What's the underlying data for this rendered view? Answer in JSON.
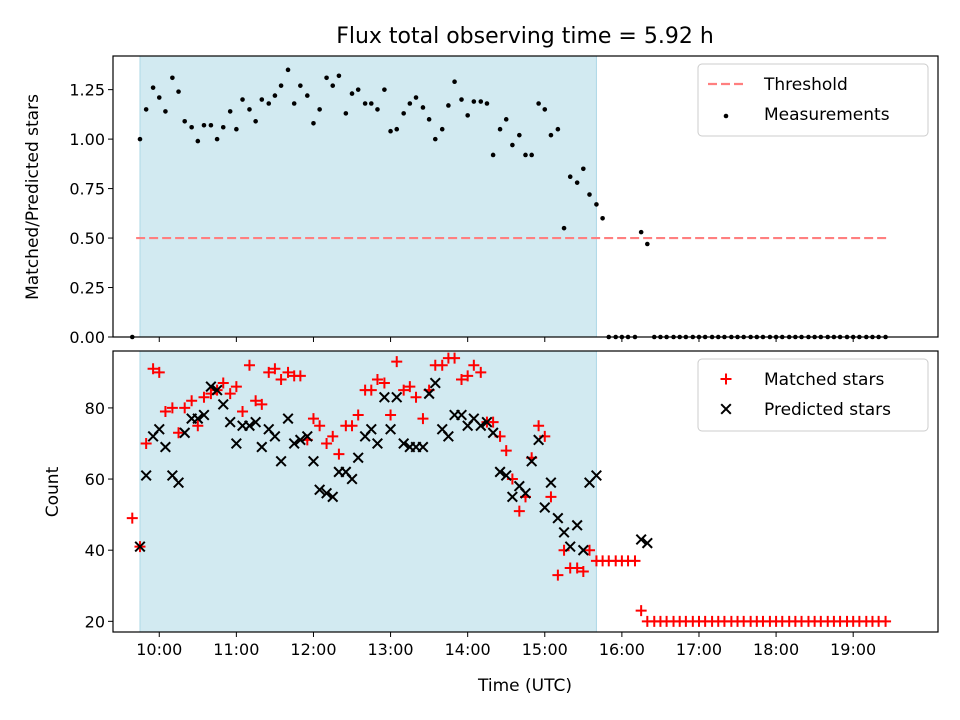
{
  "chart_data": [
    {
      "type": "scatter",
      "title": "Flux total observing time = 5.92 h",
      "xlabel": "",
      "ylabel": "Matched/Predicted stars",
      "xlim": [
        9.4,
        20.1
      ],
      "ylim": [
        0.0,
        1.42
      ],
      "yticks": [
        0.0,
        0.25,
        0.5,
        0.75,
        1.0,
        1.25
      ],
      "ytick_labels": [
        "0.00",
        "0.25",
        "0.50",
        "0.75",
        "1.00",
        "1.25"
      ],
      "xticks": [
        10,
        11,
        12,
        13,
        14,
        15,
        16,
        17,
        18,
        19
      ],
      "shaded_span": [
        9.75,
        15.67
      ],
      "shade_color": "#add8e6",
      "legend_position": "upper right",
      "threshold": {
        "name": "Threshold",
        "y": 0.5,
        "x_range": [
          9.7,
          19.45
        ],
        "color": "#ff7f7f"
      },
      "series": [
        {
          "name": "Measurements",
          "color": "#000000",
          "x": [
            9.65,
            9.75,
            9.83,
            9.92,
            10.0,
            10.08,
            10.17,
            10.25,
            10.33,
            10.42,
            10.5,
            10.58,
            10.67,
            10.75,
            10.83,
            10.92,
            11.0,
            11.08,
            11.17,
            11.25,
            11.33,
            11.42,
            11.5,
            11.58,
            11.67,
            11.75,
            11.83,
            11.92,
            12.0,
            12.08,
            12.17,
            12.25,
            12.33,
            12.42,
            12.5,
            12.58,
            12.67,
            12.75,
            12.83,
            12.92,
            13.0,
            13.08,
            13.17,
            13.25,
            13.33,
            13.42,
            13.5,
            13.58,
            13.67,
            13.75,
            13.83,
            13.92,
            14.0,
            14.08,
            14.17,
            14.25,
            14.33,
            14.42,
            14.5,
            14.58,
            14.67,
            14.75,
            14.83,
            14.92,
            15.0,
            15.08,
            15.17,
            15.25,
            15.33,
            15.42,
            15.5,
            15.58,
            15.67,
            15.75,
            15.83,
            15.92,
            16.0,
            16.08,
            16.17,
            16.25,
            16.33,
            16.42,
            16.5,
            16.58,
            16.67,
            16.75,
            16.83,
            16.92,
            17.0,
            17.08,
            17.17,
            17.25,
            17.33,
            17.42,
            17.5,
            17.58,
            17.67,
            17.75,
            17.83,
            17.92,
            18.0,
            18.08,
            18.17,
            18.25,
            18.33,
            18.42,
            18.5,
            18.58,
            18.67,
            18.75,
            18.83,
            18.92,
            19.0,
            19.08,
            19.17,
            19.25,
            19.33,
            19.42
          ],
          "y": [
            0.0,
            1.0,
            1.15,
            1.26,
            1.21,
            1.14,
            1.31,
            1.24,
            1.09,
            1.06,
            0.99,
            1.07,
            1.07,
            1.0,
            1.06,
            1.14,
            1.05,
            1.2,
            1.15,
            1.09,
            1.2,
            1.18,
            1.22,
            1.27,
            1.35,
            1.18,
            1.27,
            1.22,
            1.08,
            1.15,
            1.31,
            1.27,
            1.32,
            1.13,
            1.23,
            1.25,
            1.18,
            1.18,
            1.15,
            1.25,
            1.04,
            1.05,
            1.13,
            1.18,
            1.21,
            1.16,
            1.1,
            1.0,
            1.05,
            1.17,
            1.29,
            1.2,
            1.12,
            1.19,
            1.19,
            1.18,
            0.92,
            1.05,
            1.1,
            0.97,
            1.02,
            0.92,
            0.92,
            1.18,
            1.15,
            1.02,
            1.05,
            0.55,
            0.81,
            0.78,
            0.85,
            0.72,
            0.67,
            0.6,
            0.0,
            0.0,
            0.0,
            0.0,
            0.0,
            0.53,
            0.47,
            0.0,
            0.0,
            0.0,
            0.0,
            0.0,
            0.0,
            0.0,
            0.0,
            0.0,
            0.0,
            0.0,
            0.0,
            0.0,
            0.0,
            0.0,
            0.0,
            0.0,
            0.0,
            0.0,
            0.0,
            0.0,
            0.0,
            0.0,
            0.0,
            0.0,
            0.0,
            0.0,
            0.0,
            0.0,
            0.0,
            0.0,
            0.0,
            0.0,
            0.0,
            0.0,
            0.0,
            0.0
          ]
        }
      ]
    },
    {
      "type": "scatter",
      "title": "",
      "xlabel": "Time (UTC)",
      "ylabel": "Count",
      "xlim": [
        9.4,
        20.1
      ],
      "ylim": [
        17,
        96
      ],
      "yticks": [
        20,
        40,
        60,
        80
      ],
      "ytick_labels": [
        "20",
        "40",
        "60",
        "80"
      ],
      "xticks": [
        10,
        11,
        12,
        13,
        14,
        15,
        16,
        17,
        18,
        19
      ],
      "xtick_labels": [
        "10:00",
        "11:00",
        "12:00",
        "13:00",
        "14:00",
        "15:00",
        "16:00",
        "17:00",
        "18:00",
        "19:00"
      ],
      "shaded_span": [
        9.75,
        15.67
      ],
      "shade_color": "#add8e6",
      "legend_position": "upper right",
      "series": [
        {
          "name": "Matched stars",
          "marker": "plus",
          "color": "#ff0000",
          "x": [
            9.65,
            9.75,
            9.83,
            9.92,
            10.0,
            10.08,
            10.17,
            10.25,
            10.33,
            10.42,
            10.5,
            10.58,
            10.67,
            10.75,
            10.83,
            10.92,
            11.0,
            11.08,
            11.17,
            11.25,
            11.33,
            11.42,
            11.5,
            11.58,
            11.67,
            11.75,
            11.83,
            11.92,
            12.0,
            12.08,
            12.17,
            12.25,
            12.33,
            12.42,
            12.5,
            12.58,
            12.67,
            12.75,
            12.83,
            12.92,
            13.0,
            13.08,
            13.17,
            13.25,
            13.33,
            13.42,
            13.5,
            13.58,
            13.67,
            13.75,
            13.83,
            13.92,
            14.0,
            14.08,
            14.17,
            14.25,
            14.33,
            14.42,
            14.5,
            14.58,
            14.67,
            14.75,
            14.83,
            14.92,
            15.0,
            15.08,
            15.17,
            15.25,
            15.33,
            15.42,
            15.5,
            15.58,
            15.67,
            15.75,
            15.83,
            15.92,
            16.0,
            16.08,
            16.17,
            16.25,
            16.33,
            16.42,
            16.5,
            16.58,
            16.67,
            16.75,
            16.83,
            16.92,
            17.0,
            17.08,
            17.17,
            17.25,
            17.33,
            17.42,
            17.5,
            17.58,
            17.67,
            17.75,
            17.83,
            17.92,
            18.0,
            18.08,
            18.17,
            18.25,
            18.33,
            18.42,
            18.5,
            18.58,
            18.67,
            18.75,
            18.83,
            18.92,
            19.0,
            19.08,
            19.17,
            19.25,
            19.33,
            19.42
          ],
          "y": [
            49,
            41,
            70,
            91,
            90,
            79,
            80,
            73,
            80,
            82,
            75,
            83,
            84,
            85,
            87,
            84,
            86,
            79,
            92,
            82,
            81,
            90,
            91,
            88,
            90,
            89,
            89,
            71,
            77,
            75,
            70,
            72,
            67,
            75,
            75,
            78,
            85,
            85,
            88,
            87,
            78,
            93,
            85,
            86,
            83,
            77,
            85,
            92,
            92,
            94,
            94,
            88,
            89,
            92,
            90,
            76,
            76,
            72,
            68,
            60,
            51,
            55,
            66,
            75,
            72,
            55,
            33,
            40,
            35,
            35,
            34,
            40,
            37,
            37,
            37,
            37,
            37,
            37,
            37,
            23,
            20,
            20,
            20,
            20,
            20,
            20,
            20,
            20,
            20,
            20,
            20,
            20,
            20,
            20,
            20,
            20,
            20,
            20,
            20,
            20,
            20,
            20,
            20,
            20,
            20,
            20,
            20,
            20,
            20,
            20,
            20,
            20,
            20,
            20,
            20,
            20,
            20,
            20
          ]
        },
        {
          "name": "Predicted stars",
          "marker": "x",
          "color": "#000000",
          "x": [
            9.75,
            9.83,
            9.92,
            10.0,
            10.08,
            10.17,
            10.25,
            10.33,
            10.42,
            10.5,
            10.58,
            10.67,
            10.75,
            10.83,
            10.92,
            11.0,
            11.08,
            11.17,
            11.25,
            11.33,
            11.42,
            11.5,
            11.58,
            11.67,
            11.75,
            11.83,
            11.92,
            12.0,
            12.08,
            12.17,
            12.25,
            12.33,
            12.42,
            12.5,
            12.58,
            12.67,
            12.75,
            12.83,
            12.92,
            13.0,
            13.08,
            13.17,
            13.25,
            13.33,
            13.42,
            13.5,
            13.58,
            13.67,
            13.75,
            13.83,
            13.92,
            14.0,
            14.08,
            14.17,
            14.25,
            14.33,
            14.42,
            14.5,
            14.58,
            14.67,
            14.75,
            14.83,
            14.92,
            15.0,
            15.08,
            15.17,
            15.25,
            15.33,
            15.42,
            15.5,
            15.58,
            15.67,
            16.25,
            16.33
          ],
          "y": [
            41,
            61,
            72,
            74,
            69,
            61,
            59,
            73,
            77,
            77,
            78,
            86,
            85,
            81,
            76,
            70,
            75,
            75,
            76,
            69,
            74,
            72,
            65,
            77,
            70,
            71,
            72,
            65,
            57,
            56,
            55,
            62,
            62,
            60,
            66,
            72,
            74,
            70,
            83,
            74,
            83,
            70,
            69,
            69,
            69,
            84,
            87,
            74,
            72,
            78,
            78,
            75,
            77,
            75,
            76,
            73,
            62,
            61,
            55,
            58,
            56,
            65,
            71,
            52,
            59,
            49,
            45,
            41,
            47,
            40,
            59,
            61,
            43,
            42
          ]
        }
      ]
    }
  ]
}
